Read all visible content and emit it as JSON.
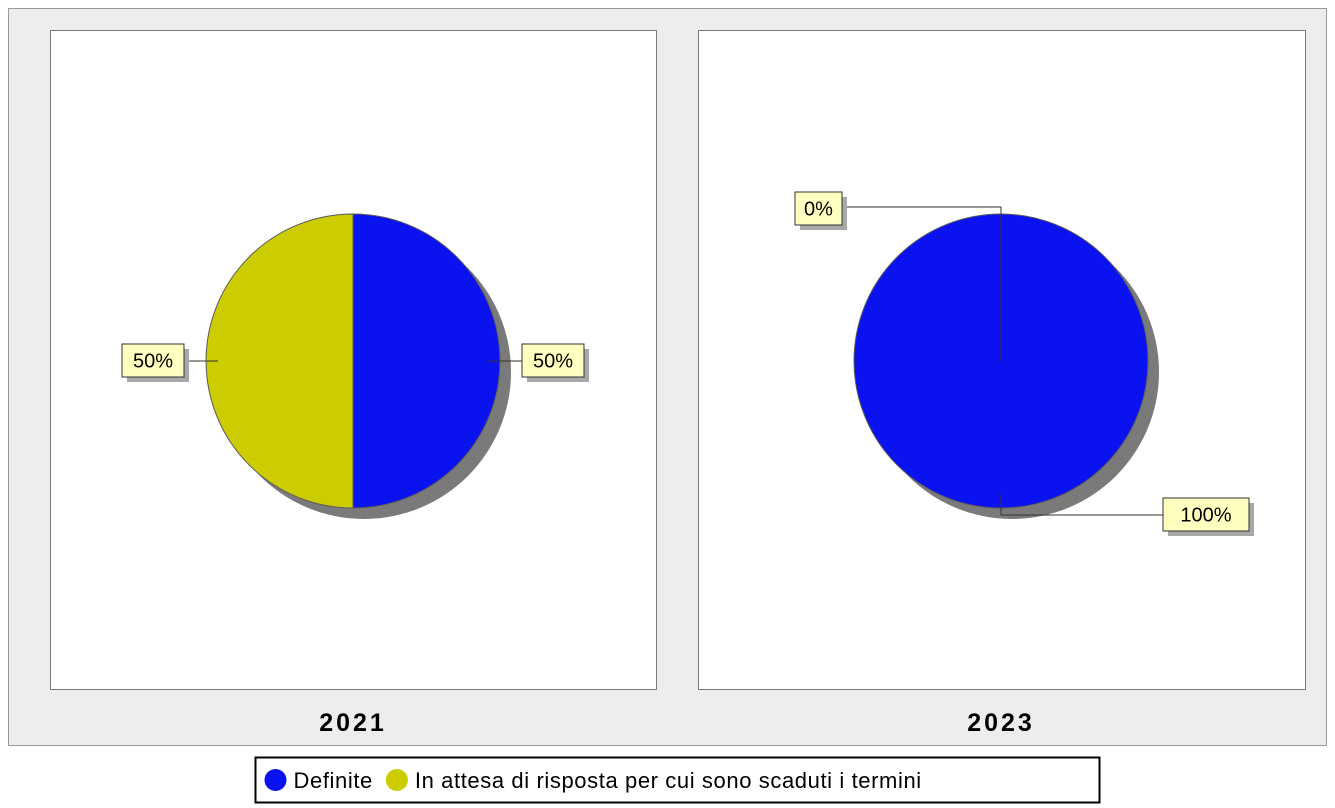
{
  "colors": {
    "background": "#ededed",
    "frame_border": "#9a9a9a",
    "panel_fill": "#ffffff",
    "panel_border": "#7a7a7a",
    "label_fill": "#ffffc0",
    "label_shadow": "#a8a8a8",
    "pie_shadow": "#7a7a7a",
    "pie_outline": "#5a5a5a"
  },
  "legend": {
    "items": [
      {
        "name": "Definite",
        "color": "#0a12f0"
      },
      {
        "name": "In attesa di risposta per cui sono scaduti i termini",
        "color": "#cccc00"
      }
    ]
  },
  "chart_data": [
    {
      "type": "pie",
      "title": "2021",
      "slices": [
        {
          "category": "Definite",
          "percent": 50,
          "label": "50%",
          "color": "#0a12f0"
        },
        {
          "category": "In attesa di risposta per cui sono scaduti i termini",
          "percent": 50,
          "label": "50%",
          "color": "#cccc00"
        }
      ]
    },
    {
      "type": "pie",
      "title": "2023",
      "slices": [
        {
          "category": "Definite",
          "percent": 100,
          "label": "100%",
          "color": "#0a12f0"
        },
        {
          "category": "In attesa di risposta per cui sono scaduti i termini",
          "percent": 0,
          "label": "0%",
          "color": "#cccc00"
        }
      ]
    }
  ]
}
